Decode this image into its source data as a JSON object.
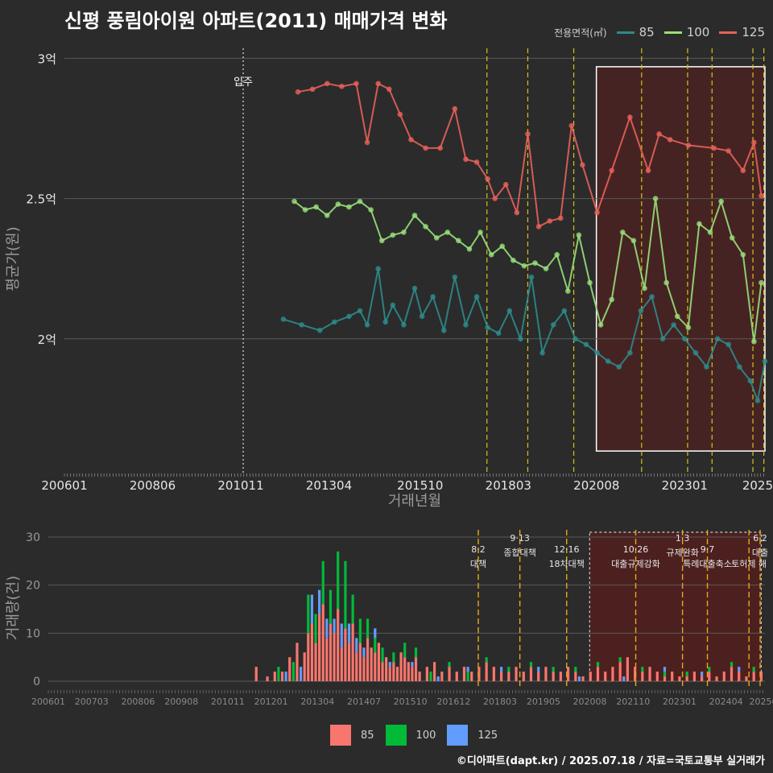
{
  "title": "신평 풍림아이원 아파트(2011) 매매가격 변화",
  "legend_top": {
    "title": "전용면적(㎡)",
    "items": [
      {
        "label": "85",
        "color": "#2e8b8b"
      },
      {
        "label": "100",
        "color": "#98e07a"
      },
      {
        "label": "125",
        "color": "#e8615a"
      }
    ]
  },
  "legend_bottom": {
    "items": [
      {
        "label": "85",
        "color": "#f8766d"
      },
      {
        "label": "100",
        "color": "#00ba38"
      },
      {
        "label": "125",
        "color": "#619cff"
      }
    ]
  },
  "caption": "©디아파트(dapt.kr) / 2025.07.18 / 자료=국토교통부 실거래가",
  "chart_data": [
    {
      "type": "line",
      "xlabel": "거래년월",
      "ylabel": "평균가(원)",
      "ylim": [
        1.52,
        3.05
      ],
      "ytick_labels": [
        "2억",
        "2.5억",
        "3억"
      ],
      "ytick_values": [
        2.0,
        2.5,
        3.0
      ],
      "xtick_labels": [
        "200601",
        "200806",
        "201011",
        "201304",
        "201510",
        "201803",
        "202008",
        "202301",
        "2025"
      ],
      "grid": true,
      "annotation": {
        "label": "입주",
        "x": 2010.9
      },
      "policy_lines": [
        2017.58,
        2018.7,
        2019.96,
        2021.82,
        2023.08,
        2023.75,
        2024.87,
        2025.17
      ],
      "shaded_region": [
        2020.58,
        2025.2
      ],
      "series": [
        {
          "name": "85",
          "color": "#2e8b8b",
          "x": [
            2012.0,
            2012.5,
            2013.0,
            2013.4,
            2013.8,
            2014.1,
            2014.3,
            2014.6,
            2014.8,
            2015.0,
            2015.3,
            2015.6,
            2015.8,
            2016.1,
            2016.4,
            2016.7,
            2017.0,
            2017.3,
            2017.6,
            2017.9,
            2018.2,
            2018.5,
            2018.8,
            2019.1,
            2019.4,
            2019.7,
            2020.0,
            2020.3,
            2020.6,
            2020.9,
            2021.2,
            2021.5,
            2021.8,
            2022.1,
            2022.4,
            2022.7,
            2023.0,
            2023.3,
            2023.6,
            2023.9,
            2024.2,
            2024.5,
            2024.8,
            2025.0,
            2025.2
          ],
          "values": [
            2.07,
            2.05,
            2.03,
            2.06,
            2.08,
            2.1,
            2.05,
            2.25,
            2.06,
            2.12,
            2.05,
            2.18,
            2.08,
            2.15,
            2.03,
            2.22,
            2.05,
            2.15,
            2.04,
            2.02,
            2.1,
            2.0,
            2.22,
            1.95,
            2.05,
            2.1,
            2.0,
            1.98,
            1.95,
            1.92,
            1.9,
            1.95,
            2.1,
            2.15,
            2.0,
            2.05,
            2.0,
            1.95,
            1.9,
            2.0,
            1.98,
            1.9,
            1.85,
            1.78,
            1.92
          ]
        },
        {
          "name": "100",
          "color": "#98e07a",
          "x": [
            2012.3,
            2012.6,
            2012.9,
            2013.2,
            2013.5,
            2013.8,
            2014.1,
            2014.4,
            2014.7,
            2015.0,
            2015.3,
            2015.6,
            2015.9,
            2016.2,
            2016.5,
            2016.8,
            2017.1,
            2017.4,
            2017.7,
            2018.0,
            2018.3,
            2018.6,
            2018.9,
            2019.2,
            2019.5,
            2019.8,
            2020.1,
            2020.4,
            2020.7,
            2021.0,
            2021.3,
            2021.6,
            2021.9,
            2022.2,
            2022.5,
            2022.8,
            2023.1,
            2023.4,
            2023.7,
            2024.0,
            2024.3,
            2024.6,
            2024.9,
            2025.1
          ],
          "values": [
            2.49,
            2.46,
            2.47,
            2.44,
            2.48,
            2.47,
            2.49,
            2.46,
            2.35,
            2.37,
            2.38,
            2.44,
            2.4,
            2.36,
            2.38,
            2.35,
            2.32,
            2.38,
            2.3,
            2.33,
            2.28,
            2.26,
            2.27,
            2.25,
            2.3,
            2.17,
            2.37,
            2.2,
            2.05,
            2.14,
            2.38,
            2.35,
            2.18,
            2.5,
            2.2,
            2.08,
            2.04,
            2.41,
            2.38,
            2.49,
            2.36,
            2.3,
            1.99,
            2.2
          ]
        },
        {
          "name": "125",
          "color": "#e8615a",
          "x": [
            2012.4,
            2012.8,
            2013.2,
            2013.6,
            2014.0,
            2014.3,
            2014.6,
            2014.9,
            2015.2,
            2015.5,
            2015.9,
            2016.3,
            2016.7,
            2017.0,
            2017.3,
            2017.6,
            2017.8,
            2018.1,
            2018.4,
            2018.7,
            2019.0,
            2019.3,
            2019.6,
            2019.9,
            2020.2,
            2020.6,
            2021.0,
            2021.5,
            2022.0,
            2022.3,
            2022.6,
            2023.1,
            2023.8,
            2024.2,
            2024.6,
            2024.9,
            2025.1
          ],
          "values": [
            2.88,
            2.89,
            2.91,
            2.9,
            2.91,
            2.7,
            2.91,
            2.89,
            2.8,
            2.71,
            2.68,
            2.68,
            2.82,
            2.64,
            2.63,
            2.57,
            2.5,
            2.55,
            2.45,
            2.73,
            2.4,
            2.42,
            2.43,
            2.76,
            2.62,
            2.45,
            2.6,
            2.79,
            2.6,
            2.73,
            2.71,
            2.69,
            2.68,
            2.67,
            2.6,
            2.7,
            2.51
          ]
        }
      ]
    },
    {
      "type": "bar",
      "ylabel": "거래량(건)",
      "ylim": [
        -1.5,
        32
      ],
      "ytick_labels": [
        "0",
        "10",
        "20",
        "30"
      ],
      "ytick_values": [
        0,
        10,
        20,
        30
      ],
      "xtick_labels": [
        "200601",
        "200703",
        "200806",
        "200908",
        "201011",
        "201201",
        "201304",
        "201407",
        "201510",
        "201612",
        "201803",
        "201905",
        "202008",
        "202110",
        "202301",
        "202404",
        "202505"
      ],
      "policy_lines": [
        2017.58,
        2018.7,
        2019.96,
        2021.82,
        2023.08,
        2023.75,
        2024.87,
        2025.17
      ],
      "policy_labels": [
        {
          "date": "8·2",
          "text": "대책",
          "x": 2017.58
        },
        {
          "date": "9·13",
          "text": "종합대책",
          "x": 2018.7
        },
        {
          "date": "12·16",
          "text": "18차대책",
          "x": 2019.96
        },
        {
          "date": "10·26",
          "text": "대출규제강화",
          "x": 2021.82
        },
        {
          "date": "1·3",
          "text": "규제완화",
          "x": 2023.08
        },
        {
          "date": "9·7",
          "text": "특례대출축소",
          "x": 2023.75
        },
        {
          "date": "",
          "text": "토허제 해",
          "x": 2024.87
        },
        {
          "date": "6·2",
          "text": "대출",
          "x": 2025.17
        }
      ],
      "shaded_region": [
        2020.58,
        2025.2
      ],
      "series": [
        {
          "name": "85",
          "color": "#f8766d",
          "x": [
            2011.6,
            2011.9,
            2012.1,
            2012.3,
            2012.5,
            2012.7,
            2012.9,
            2013.0,
            2013.1,
            2013.2,
            2013.3,
            2013.4,
            2013.5,
            2013.6,
            2013.7,
            2013.8,
            2013.9,
            2014.0,
            2014.1,
            2014.2,
            2014.3,
            2014.4,
            2014.5,
            2014.6,
            2014.7,
            2014.8,
            2014.9,
            2015.0,
            2015.1,
            2015.2,
            2015.3,
            2015.4,
            2015.5,
            2015.6,
            2015.7,
            2015.8,
            2015.9,
            2016.0,
            2016.2,
            2016.4,
            2016.6,
            2016.8,
            2017.0,
            2017.2,
            2017.4,
            2017.6,
            2017.8,
            2018.0,
            2018.2,
            2018.4,
            2018.6,
            2018.8,
            2019.0,
            2019.2,
            2019.4,
            2019.6,
            2019.8,
            2020.0,
            2020.2,
            2020.4,
            2020.6,
            2020.8,
            2021.0,
            2021.2,
            2021.4,
            2021.6,
            2021.8,
            2022.0,
            2022.2,
            2022.4,
            2022.6,
            2022.8,
            2023.0,
            2023.2,
            2023.4,
            2023.6,
            2023.8,
            2024.0,
            2024.2,
            2024.4,
            2024.6,
            2024.8,
            2025.0,
            2025.2
          ],
          "values": [
            3,
            1,
            2,
            2,
            5,
            8,
            6,
            10,
            12,
            8,
            14,
            16,
            9,
            12,
            10,
            15,
            7,
            11,
            8,
            12,
            6,
            8,
            5,
            9,
            7,
            6,
            8,
            4,
            5,
            3,
            4,
            3,
            6,
            5,
            4,
            3,
            5,
            2,
            3,
            4,
            2,
            3,
            2,
            3,
            2,
            3,
            4,
            3,
            2,
            2,
            3,
            2,
            3,
            2,
            3,
            2,
            2,
            3,
            2,
            1,
            2,
            3,
            2,
            3,
            4,
            5,
            3,
            2,
            3,
            2,
            1,
            2,
            1,
            1,
            2,
            1,
            2,
            1,
            2,
            3,
            2,
            1,
            2,
            2
          ]
        },
        {
          "name": "100",
          "color": "#00ba38",
          "x": [
            2012.2,
            2012.6,
            2013.0,
            2013.2,
            2013.4,
            2013.6,
            2013.8,
            2014.0,
            2014.2,
            2014.4,
            2014.6,
            2014.8,
            2015.0,
            2015.3,
            2015.6,
            2015.9,
            2016.3,
            2016.8,
            2017.3,
            2017.8,
            2018.4,
            2019.0,
            2019.6,
            2020.2,
            2020.8,
            2021.4,
            2022.0,
            2022.6,
            2023.2,
            2023.8,
            2024.4,
            2025.0
          ],
          "values": [
            3,
            4,
            8,
            6,
            9,
            7,
            12,
            14,
            6,
            5,
            4,
            3,
            3,
            2,
            3,
            2,
            2,
            1,
            2,
            1,
            1,
            1,
            1,
            1,
            1,
            1,
            1,
            1,
            1,
            1,
            1,
            1
          ]
        },
        {
          "name": "125",
          "color": "#619cff",
          "x": [
            2012.4,
            2012.8,
            2013.1,
            2013.3,
            2013.5,
            2013.7,
            2013.9,
            2014.1,
            2014.3,
            2014.5,
            2014.8,
            2015.2,
            2015.8,
            2016.5,
            2017.3,
            2018.2,
            2019.2,
            2020.3,
            2021.5,
            2022.6,
            2023.6,
            2024.6
          ],
          "values": [
            2,
            3,
            6,
            5,
            4,
            3,
            5,
            4,
            3,
            2,
            2,
            1,
            1,
            1,
            1,
            1,
            1,
            1,
            1,
            1,
            1,
            1
          ]
        }
      ]
    }
  ]
}
